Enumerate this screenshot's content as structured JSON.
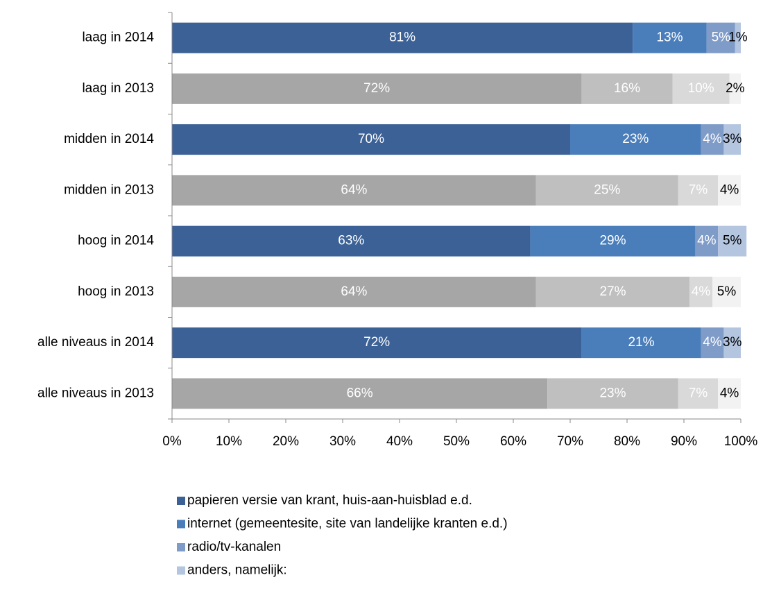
{
  "chart_data": {
    "type": "bar_stacked_horizontal",
    "categories": [
      "laag in 2014",
      "laag in 2013",
      "midden in 2014",
      "midden in 2013",
      "hoog in 2014",
      "hoog in 2013",
      "alle niveaus in 2014",
      "alle niveaus in 2013"
    ],
    "series": [
      {
        "name": "papieren versie van krant, huis-aan-huisblad e.d.",
        "color": "#3b6196",
        "colors": [
          "#3b6196",
          "#a6a6a6",
          "#3b6196",
          "#a6a6a6",
          "#3b6196",
          "#a6a6a6",
          "#3b6196",
          "#a6a6a6"
        ],
        "label_color": "#ffffff",
        "values": [
          81,
          72,
          70,
          64,
          63,
          64,
          72,
          66
        ],
        "value_labels": [
          "81%",
          "72%",
          "70%",
          "64%",
          "63%",
          "64%",
          "72%",
          "66%"
        ]
      },
      {
        "name": "internet (gemeentesite, site van landelijke kranten e.d.)",
        "color": "#4a7ebb",
        "colors": [
          "#4a7ebb",
          "#bfbfbf",
          "#4a7ebb",
          "#bfbfbf",
          "#4a7ebb",
          "#bfbfbf",
          "#4a7ebb",
          "#bfbfbf"
        ],
        "label_color": "#ffffff",
        "values": [
          13,
          16,
          23,
          25,
          29,
          27,
          21,
          23
        ],
        "value_labels": [
          "13%",
          "16%",
          "23%",
          "25%",
          "29%",
          "27%",
          "21%",
          "23%"
        ]
      },
      {
        "name": "radio/tv-kanalen",
        "color": "#7f9bc8",
        "colors": [
          "#7f9bc8",
          "#d9d9d9",
          "#7f9bc8",
          "#d9d9d9",
          "#7f9bc8",
          "#d9d9d9",
          "#7f9bc8",
          "#d9d9d9"
        ],
        "label_color": "#ffffff",
        "values": [
          5,
          10,
          4,
          7,
          4,
          4,
          4,
          7
        ],
        "value_labels": [
          "5%",
          "10%",
          "4%",
          "7%",
          "4%",
          "4%",
          "4%",
          "7%"
        ]
      },
      {
        "name": "anders, namelijk:",
        "color": "#b4c5e0",
        "colors": [
          "#b4c5e0",
          "#f2f2f2",
          "#b4c5e0",
          "#f2f2f2",
          "#b4c5e0",
          "#f2f2f2",
          "#b4c5e0",
          "#f2f2f2"
        ],
        "label_color": "#000000",
        "values": [
          1,
          2,
          3,
          4,
          5,
          5,
          3,
          4
        ],
        "value_labels": [
          "1%",
          "2%",
          "3%",
          "4%",
          "5%",
          "5%",
          "3%",
          "4%"
        ]
      }
    ],
    "xlim": [
      0,
      100
    ],
    "xticks": [
      {
        "value": 0,
        "label": "0%"
      },
      {
        "value": 10,
        "label": "10%"
      },
      {
        "value": 20,
        "label": "20%"
      },
      {
        "value": 30,
        "label": "30%"
      },
      {
        "value": 40,
        "label": "40%"
      },
      {
        "value": 50,
        "label": "50%"
      },
      {
        "value": 60,
        "label": "60%"
      },
      {
        "value": 70,
        "label": "70%"
      },
      {
        "value": 80,
        "label": "80%"
      },
      {
        "value": 90,
        "label": "90%"
      },
      {
        "value": 100,
        "label": "100%"
      }
    ],
    "legend": "bottom"
  }
}
